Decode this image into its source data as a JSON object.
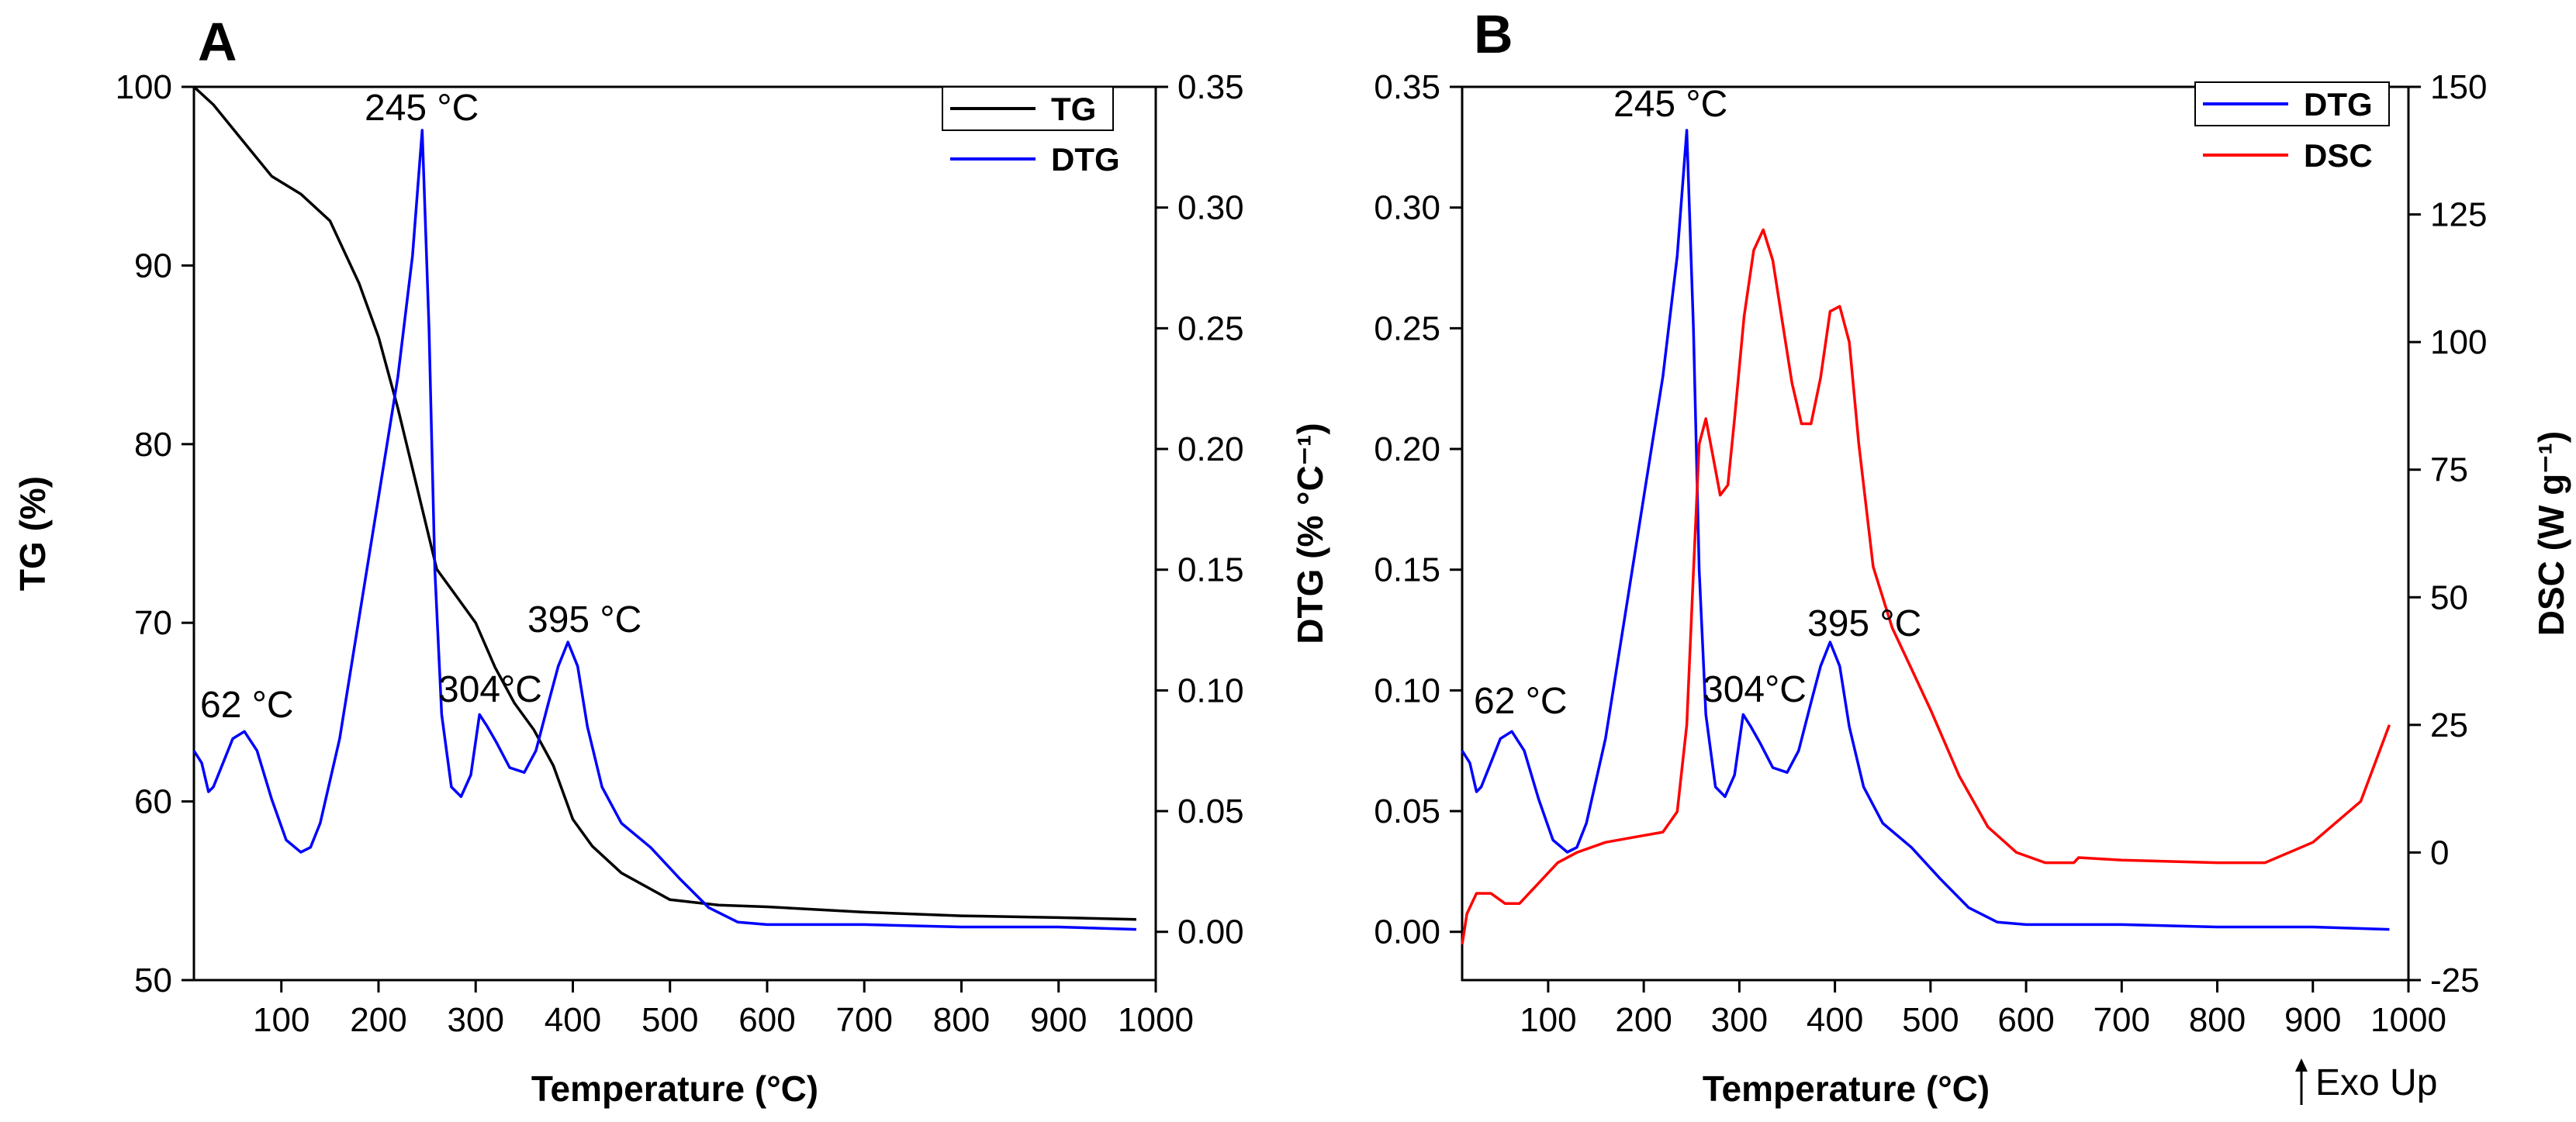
{
  "chart_data": [
    {
      "panel": "A",
      "type": "line",
      "xlabel": "Temperature (°C)",
      "xlim": [
        10,
        1000
      ],
      "xticks": [
        100,
        200,
        300,
        400,
        500,
        600,
        700,
        800,
        900,
        1000
      ],
      "y_left": {
        "label": "TG (%)",
        "lim": [
          50,
          100
        ],
        "ticks": [
          50,
          60,
          70,
          80,
          90,
          100
        ]
      },
      "y_right": {
        "label": "",
        "lim": [
          -0.02,
          0.35
        ],
        "ticks": [
          "0.00",
          "0.05",
          "0.10",
          "0.15",
          "0.20",
          "0.25",
          "0.30",
          "0.35"
        ]
      },
      "legend": {
        "position": "top-right",
        "entries": [
          "TG",
          "DTG"
        ]
      },
      "annotations": [
        "245 °C",
        "62 °C",
        "304°C",
        "395 °C"
      ],
      "series": [
        {
          "name": "TG",
          "axis": "left",
          "color": "#000000",
          "x": [
            10,
            30,
            60,
            90,
            120,
            150,
            180,
            200,
            220,
            240,
            260,
            280,
            300,
            320,
            340,
            360,
            380,
            400,
            420,
            450,
            500,
            550,
            600,
            700,
            800,
            900,
            980
          ],
          "y": [
            100,
            99,
            97,
            95,
            94,
            92.5,
            89,
            86,
            82,
            77.5,
            73,
            71.5,
            70,
            67.5,
            65.5,
            64,
            62,
            59,
            57.5,
            56,
            54.5,
            54.2,
            54.1,
            53.8,
            53.6,
            53.5,
            53.4
          ]
        },
        {
          "name": "DTG",
          "axis": "right",
          "color": "#0000ff",
          "x": [
            10,
            18,
            25,
            30,
            40,
            50,
            62,
            75,
            90,
            105,
            120,
            130,
            140,
            160,
            180,
            200,
            220,
            235,
            245,
            252,
            258,
            265,
            275,
            285,
            295,
            304,
            312,
            322,
            335,
            350,
            362,
            375,
            385,
            395,
            405,
            415,
            430,
            450,
            480,
            510,
            540,
            570,
            600,
            700,
            800,
            900,
            980
          ],
          "y": [
            0.075,
            0.07,
            0.058,
            0.06,
            0.07,
            0.08,
            0.083,
            0.075,
            0.055,
            0.038,
            0.033,
            0.035,
            0.045,
            0.08,
            0.13,
            0.18,
            0.23,
            0.28,
            0.332,
            0.25,
            0.15,
            0.09,
            0.06,
            0.056,
            0.065,
            0.09,
            0.085,
            0.078,
            0.068,
            0.066,
            0.075,
            0.095,
            0.11,
            0.12,
            0.11,
            0.085,
            0.06,
            0.045,
            0.035,
            0.022,
            0.01,
            0.004,
            0.003,
            0.003,
            0.002,
            0.002,
            0.001
          ]
        }
      ]
    },
    {
      "panel": "B",
      "type": "line",
      "xlabel": "Temperature (°C)",
      "xlim": [
        10,
        1000
      ],
      "xticks": [
        100,
        200,
        300,
        400,
        500,
        600,
        700,
        800,
        900,
        1000
      ],
      "y_left": {
        "label": "DTG (% °C⁻¹)",
        "lim": [
          -0.02,
          0.35
        ],
        "ticks": [
          "0.00",
          "0.05",
          "0.10",
          "0.15",
          "0.20",
          "0.25",
          "0.30",
          "0.35"
        ]
      },
      "y_right": {
        "label": "DSC (W g⁻¹)",
        "lim": [
          -25,
          150
        ],
        "ticks": [
          "-25",
          "0",
          "25",
          "50",
          "75",
          "100",
          "125",
          "150"
        ]
      },
      "legend": {
        "position": "top-right",
        "entries": [
          "DTG",
          "DSC"
        ]
      },
      "annotations": [
        "245 °C",
        "62 °C",
        "304°C",
        "395 °C"
      ],
      "exo_label": "Exo Up",
      "series": [
        {
          "name": "DTG",
          "axis": "left",
          "color": "#0000ff",
          "x": [
            10,
            18,
            25,
            30,
            40,
            50,
            62,
            75,
            90,
            105,
            120,
            130,
            140,
            160,
            180,
            200,
            220,
            235,
            245,
            252,
            258,
            265,
            275,
            285,
            295,
            304,
            312,
            322,
            335,
            350,
            362,
            375,
            385,
            395,
            405,
            415,
            430,
            450,
            480,
            510,
            540,
            570,
            600,
            700,
            800,
            900,
            980
          ],
          "y": [
            0.075,
            0.07,
            0.058,
            0.06,
            0.07,
            0.08,
            0.083,
            0.075,
            0.055,
            0.038,
            0.033,
            0.035,
            0.045,
            0.08,
            0.13,
            0.18,
            0.23,
            0.28,
            0.332,
            0.25,
            0.15,
            0.09,
            0.06,
            0.056,
            0.065,
            0.09,
            0.085,
            0.078,
            0.068,
            0.066,
            0.075,
            0.095,
            0.11,
            0.12,
            0.11,
            0.085,
            0.06,
            0.045,
            0.035,
            0.022,
            0.01,
            0.004,
            0.003,
            0.003,
            0.002,
            0.002,
            0.001
          ]
        },
        {
          "name": "DSC",
          "axis": "right",
          "color": "#ff0000",
          "x": [
            10,
            15,
            25,
            40,
            55,
            70,
            90,
            110,
            130,
            160,
            190,
            220,
            235,
            245,
            252,
            258,
            265,
            272,
            280,
            288,
            295,
            305,
            315,
            325,
            335,
            345,
            355,
            365,
            375,
            385,
            395,
            405,
            415,
            425,
            440,
            460,
            480,
            500,
            530,
            560,
            590,
            620,
            650,
            655,
            700,
            800,
            850,
            900,
            950,
            980
          ],
          "y": [
            -18,
            -12,
            -8,
            -8,
            -10,
            -10,
            -6,
            -2,
            0,
            2,
            3,
            4,
            8,
            25,
            55,
            80,
            85,
            78,
            70,
            72,
            85,
            105,
            118,
            122,
            116,
            104,
            92,
            84,
            84,
            93,
            106,
            107,
            100,
            80,
            56,
            44,
            36,
            28,
            15,
            5,
            0,
            -2,
            -2,
            -1,
            -1.5,
            -2,
            -2,
            2,
            10,
            25
          ]
        }
      ]
    }
  ]
}
